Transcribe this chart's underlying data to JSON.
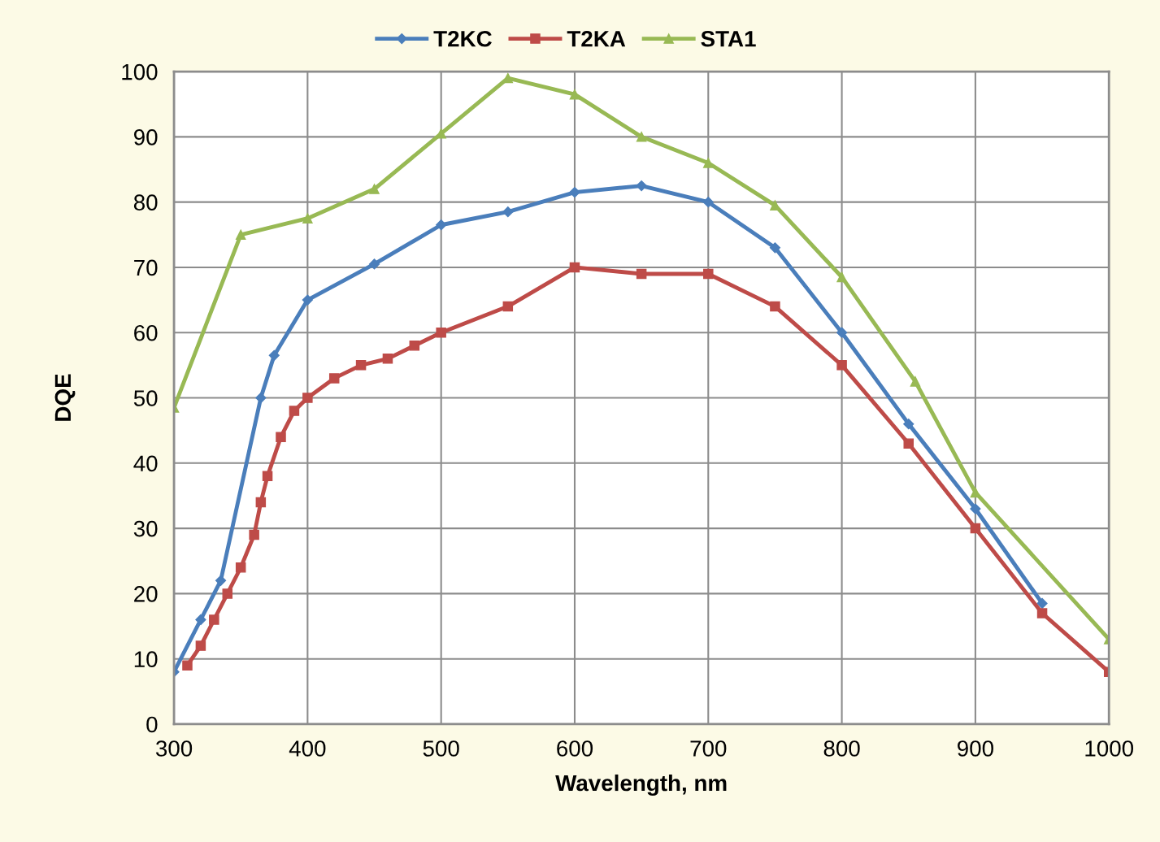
{
  "chart_data": {
    "type": "line",
    "xlabel": "Wavelength, nm",
    "ylabel": "DQE",
    "xlim": [
      300,
      1000
    ],
    "ylim": [
      0,
      100
    ],
    "xticks": [
      300,
      400,
      500,
      600,
      700,
      800,
      900,
      1000
    ],
    "yticks": [
      0,
      10,
      20,
      30,
      40,
      50,
      60,
      70,
      80,
      90,
      100
    ],
    "grid": true,
    "legend": "top",
    "line_style": "solid",
    "series": [
      {
        "name": "T2KC",
        "color": "#4a7ebb",
        "marker": "diamond",
        "x": [
          300,
          320,
          335,
          365,
          375,
          400,
          450,
          500,
          550,
          600,
          650,
          700,
          750,
          800,
          850,
          900,
          950
        ],
        "values": [
          8,
          16,
          22,
          50,
          56.5,
          65,
          70.5,
          76.5,
          78.5,
          81.5,
          82.5,
          80,
          73,
          60,
          46,
          33,
          18.5
        ]
      },
      {
        "name": "T2KA",
        "color": "#be4b48",
        "marker": "square",
        "x": [
          310,
          320,
          330,
          340,
          350,
          360,
          365,
          370,
          380,
          390,
          400,
          420,
          440,
          460,
          480,
          500,
          550,
          600,
          650,
          700,
          750,
          800,
          850,
          900,
          950,
          1000
        ],
        "values": [
          9,
          12,
          16,
          20,
          24,
          29,
          34,
          38,
          44,
          48,
          50,
          53,
          55,
          56,
          58,
          60,
          64,
          70,
          69,
          69,
          64,
          55,
          43,
          30,
          17,
          8
        ]
      },
      {
        "name": "STA1",
        "color": "#98b954",
        "marker": "triangle",
        "x": [
          300,
          350,
          400,
          450,
          500,
          550,
          600,
          650,
          700,
          750,
          800,
          855,
          900,
          1000
        ],
        "values": [
          48.5,
          75,
          77.5,
          82,
          90.5,
          99,
          96.5,
          90,
          86,
          79.5,
          68.5,
          52.5,
          35.5,
          13
        ]
      }
    ]
  }
}
